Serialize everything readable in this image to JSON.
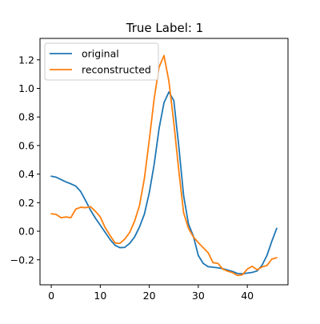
{
  "chart_data": {
    "type": "line",
    "title": "True Label: 1",
    "xlabel": "",
    "ylabel": "",
    "xlim": [
      -2.3,
      48.3
    ],
    "ylim": [
      -0.375,
      1.35
    ],
    "xticks": [
      0,
      10,
      20,
      30,
      40
    ],
    "yticks": [
      -0.2,
      0.0,
      0.2,
      0.4,
      0.6,
      0.8,
      1.0,
      1.2
    ],
    "ytick_labels": [
      "−0.2",
      "0.0",
      "0.2",
      "0.4",
      "0.6",
      "0.8",
      "1.0",
      "1.2"
    ],
    "grid": false,
    "legend_position": "upper-left",
    "x": [
      0,
      1,
      2,
      3,
      4,
      5,
      6,
      7,
      8,
      9,
      10,
      11,
      12,
      13,
      14,
      15,
      16,
      17,
      18,
      19,
      20,
      21,
      22,
      23,
      24,
      25,
      26,
      27,
      28,
      29,
      30,
      31,
      32,
      33,
      34,
      35,
      36,
      37,
      38,
      39,
      40,
      41,
      42,
      43,
      44,
      45,
      46
    ],
    "series": [
      {
        "name": "original",
        "color": "#1f77b4",
        "values": [
          0.385,
          0.378,
          0.362,
          0.345,
          0.332,
          0.316,
          0.278,
          0.215,
          0.148,
          0.092,
          0.042,
          -0.008,
          -0.058,
          -0.098,
          -0.115,
          -0.113,
          -0.085,
          -0.04,
          0.03,
          0.12,
          0.27,
          0.47,
          0.72,
          0.9,
          0.975,
          0.915,
          0.6,
          0.25,
          0.05,
          -0.035,
          -0.17,
          -0.225,
          -0.248,
          -0.252,
          -0.256,
          -0.262,
          -0.272,
          -0.282,
          -0.296,
          -0.298,
          -0.293,
          -0.288,
          -0.278,
          -0.238,
          -0.17,
          -0.07,
          0.02
        ]
      },
      {
        "name": "reconstructed",
        "color": "#ff7f0e",
        "values": [
          0.122,
          0.118,
          0.095,
          0.1,
          0.095,
          0.155,
          0.168,
          0.165,
          0.172,
          0.14,
          0.1,
          0.025,
          -0.03,
          -0.082,
          -0.085,
          -0.055,
          -0.008,
          0.07,
          0.18,
          0.37,
          0.64,
          0.93,
          1.15,
          1.23,
          1.05,
          0.76,
          0.43,
          0.13,
          0.02,
          -0.04,
          -0.08,
          -0.115,
          -0.15,
          -0.22,
          -0.225,
          -0.265,
          -0.28,
          -0.29,
          -0.31,
          -0.305,
          -0.265,
          -0.245,
          -0.27,
          -0.25,
          -0.24,
          -0.195,
          -0.185
        ]
      }
    ]
  }
}
